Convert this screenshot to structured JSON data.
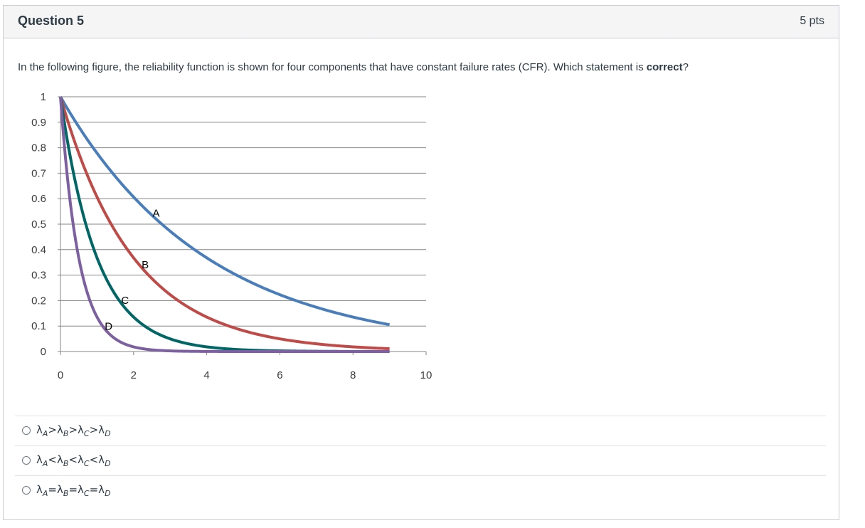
{
  "question": {
    "title": "Question 5",
    "points": "5 pts",
    "text_before": "In the following figure, the reliability function is shown for four components that have constant failure rates (CFR). Which statement is ",
    "text_bold": "correct",
    "text_after": "?"
  },
  "chart_data": {
    "type": "line",
    "x_ticks": [
      "0",
      "2",
      "4",
      "6",
      "8",
      "10"
    ],
    "y_ticks": [
      "0",
      "0.1",
      "0.2",
      "0.3",
      "0.4",
      "0.5",
      "0.6",
      "0.7",
      "0.8",
      "0.9",
      "1"
    ],
    "xlim": [
      0,
      10
    ],
    "ylim": [
      0,
      1
    ],
    "grid": "horizontal",
    "series": [
      {
        "name": "A",
        "rate": 0.25,
        "color": "#4a7ebb",
        "x_end": 9,
        "label_x": 2.5
      },
      {
        "name": "B",
        "rate": 0.5,
        "color": "#be4b48",
        "x_end": 9,
        "label_x": 2.2
      },
      {
        "name": "C",
        "rate": 1.0,
        "color": "#006666",
        "x_end": 9,
        "label_x": 1.65
      },
      {
        "name": "D",
        "rate": 2.0,
        "color": "#7d60a0",
        "x_end": 9,
        "label_x": 1.2
      }
    ]
  },
  "answers": [
    {
      "lam": "λ",
      "subs": [
        "A",
        "B",
        "C",
        "D"
      ],
      "op": ">"
    },
    {
      "lam": "λ",
      "subs": [
        "A",
        "B",
        "C",
        "D"
      ],
      "op": "<"
    },
    {
      "lam": "λ",
      "subs": [
        "A",
        "B",
        "C",
        "D"
      ],
      "op": "="
    }
  ]
}
